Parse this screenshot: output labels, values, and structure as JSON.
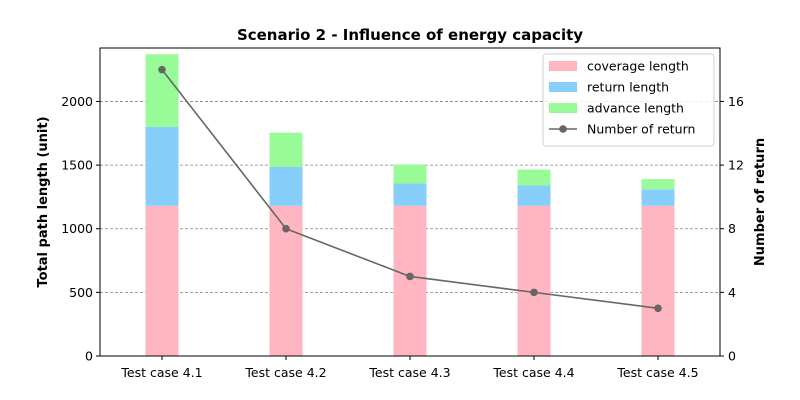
{
  "chart_data": {
    "type": "bar",
    "stacked": true,
    "title": "Scenario 2 - Influence of energy capacity",
    "categories": [
      "Test case 4.1",
      "Test case 4.2",
      "Test case 4.3",
      "Test case 4.4",
      "Test case 4.5"
    ],
    "ylabel": "Total path length (unit)",
    "ylabel_right": "Number of return",
    "ylim": [
      0,
      2420
    ],
    "ylim_right": [
      0,
      19.36
    ],
    "yticks": [
      0,
      500,
      1000,
      1500,
      2000
    ],
    "yticks_right": [
      0,
      4,
      8,
      12,
      16
    ],
    "grid": "horizontal dashed",
    "legend_position": "top-right",
    "series": [
      {
        "name": "coverage length",
        "type": "bar",
        "axis": "left",
        "color": "#ffb6c1",
        "values": [
          1180,
          1180,
          1180,
          1180,
          1180
        ]
      },
      {
        "name": "return length",
        "type": "bar",
        "axis": "left",
        "color": "#87cefa",
        "values": [
          620,
          305,
          175,
          160,
          130
        ]
      },
      {
        "name": "advance length",
        "type": "bar",
        "axis": "left",
        "color": "#98fb98",
        "values": [
          570,
          270,
          150,
          125,
          80
        ]
      },
      {
        "name": "Number of return",
        "type": "line",
        "axis": "right",
        "color": "#666666",
        "values": [
          18,
          8,
          5,
          4,
          3
        ]
      }
    ]
  }
}
